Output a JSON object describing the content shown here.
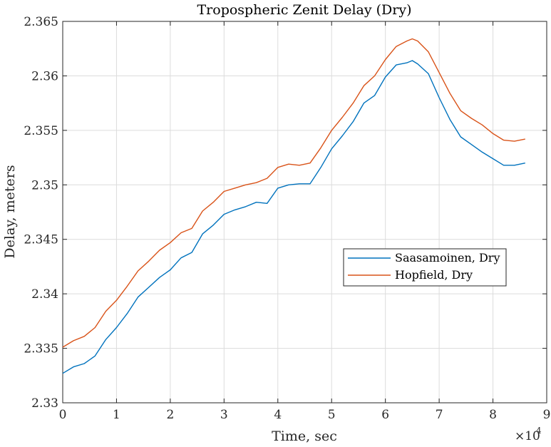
{
  "chart_data": {
    "type": "line",
    "title": "Tropospheric Zenit Delay (Dry)",
    "xlabel": "Time, sec",
    "ylabel": "Delay, meters",
    "x_exponent_label": "×10",
    "x_exponent_power": "4",
    "xlim": [
      0,
      90000
    ],
    "ylim": [
      2.33,
      2.365
    ],
    "xticks": [
      0,
      10000,
      20000,
      30000,
      40000,
      50000,
      60000,
      70000,
      80000,
      90000
    ],
    "xtick_labels": [
      "0",
      "1",
      "2",
      "3",
      "4",
      "5",
      "6",
      "7",
      "8",
      "9"
    ],
    "yticks": [
      2.33,
      2.335,
      2.34,
      2.345,
      2.35,
      2.355,
      2.36,
      2.365
    ],
    "ytick_labels": [
      "2.33",
      "2.335",
      "2.34",
      "2.345",
      "2.35",
      "2.355",
      "2.36",
      "2.365"
    ],
    "grid": true,
    "legend_position": "right",
    "series": [
      {
        "name": "Saasamoinen, Dry",
        "color": "#0072BD",
        "x": [
          0,
          2000,
          4000,
          6000,
          8000,
          10000,
          12000,
          14000,
          16000,
          18000,
          20000,
          22000,
          24000,
          26000,
          28000,
          30000,
          32000,
          34000,
          36000,
          38000,
          40000,
          42000,
          44000,
          46000,
          48000,
          50000,
          52000,
          54000,
          56000,
          58000,
          60000,
          62000,
          64000,
          65000,
          66000,
          68000,
          70000,
          72000,
          74000,
          76000,
          78000,
          80000,
          82000,
          84000,
          86000
        ],
        "y": [
          2.3327,
          2.3333,
          2.3336,
          2.3343,
          2.3358,
          2.3369,
          2.3382,
          2.3397,
          2.3406,
          2.3415,
          2.3422,
          2.3433,
          2.3438,
          2.3455,
          2.3463,
          2.3473,
          2.3477,
          2.348,
          2.3484,
          2.3483,
          2.3497,
          2.35,
          2.3501,
          2.3501,
          2.3516,
          2.3533,
          2.3545,
          2.3558,
          2.3575,
          2.3582,
          2.3599,
          2.361,
          2.3612,
          2.3614,
          2.3611,
          2.3602,
          2.358,
          2.356,
          2.3544,
          2.3537,
          2.353,
          2.3524,
          2.3518,
          2.3518,
          2.352
        ]
      },
      {
        "name": "Hopfield, Dry",
        "color": "#D95319",
        "x": [
          0,
          2000,
          4000,
          6000,
          8000,
          10000,
          12000,
          14000,
          16000,
          18000,
          20000,
          22000,
          24000,
          26000,
          28000,
          30000,
          32000,
          34000,
          36000,
          38000,
          40000,
          42000,
          44000,
          46000,
          48000,
          50000,
          52000,
          54000,
          56000,
          58000,
          60000,
          62000,
          64000,
          65000,
          66000,
          68000,
          70000,
          72000,
          74000,
          76000,
          78000,
          80000,
          82000,
          84000,
          86000
        ],
        "y": [
          2.3351,
          2.3357,
          2.3361,
          2.3369,
          2.3384,
          2.3394,
          2.3407,
          2.3421,
          2.343,
          2.344,
          2.3447,
          2.3456,
          2.346,
          2.3476,
          2.3484,
          2.3494,
          2.3497,
          2.35,
          2.3502,
          2.3506,
          2.3516,
          2.3519,
          2.3518,
          2.352,
          2.3534,
          2.355,
          2.3562,
          2.3575,
          2.3591,
          2.36,
          2.3615,
          2.3627,
          2.3632,
          2.3634,
          2.3632,
          2.3622,
          2.3603,
          2.3584,
          2.3568,
          2.3561,
          2.3555,
          2.3547,
          2.3541,
          2.354,
          2.3542
        ]
      }
    ]
  }
}
